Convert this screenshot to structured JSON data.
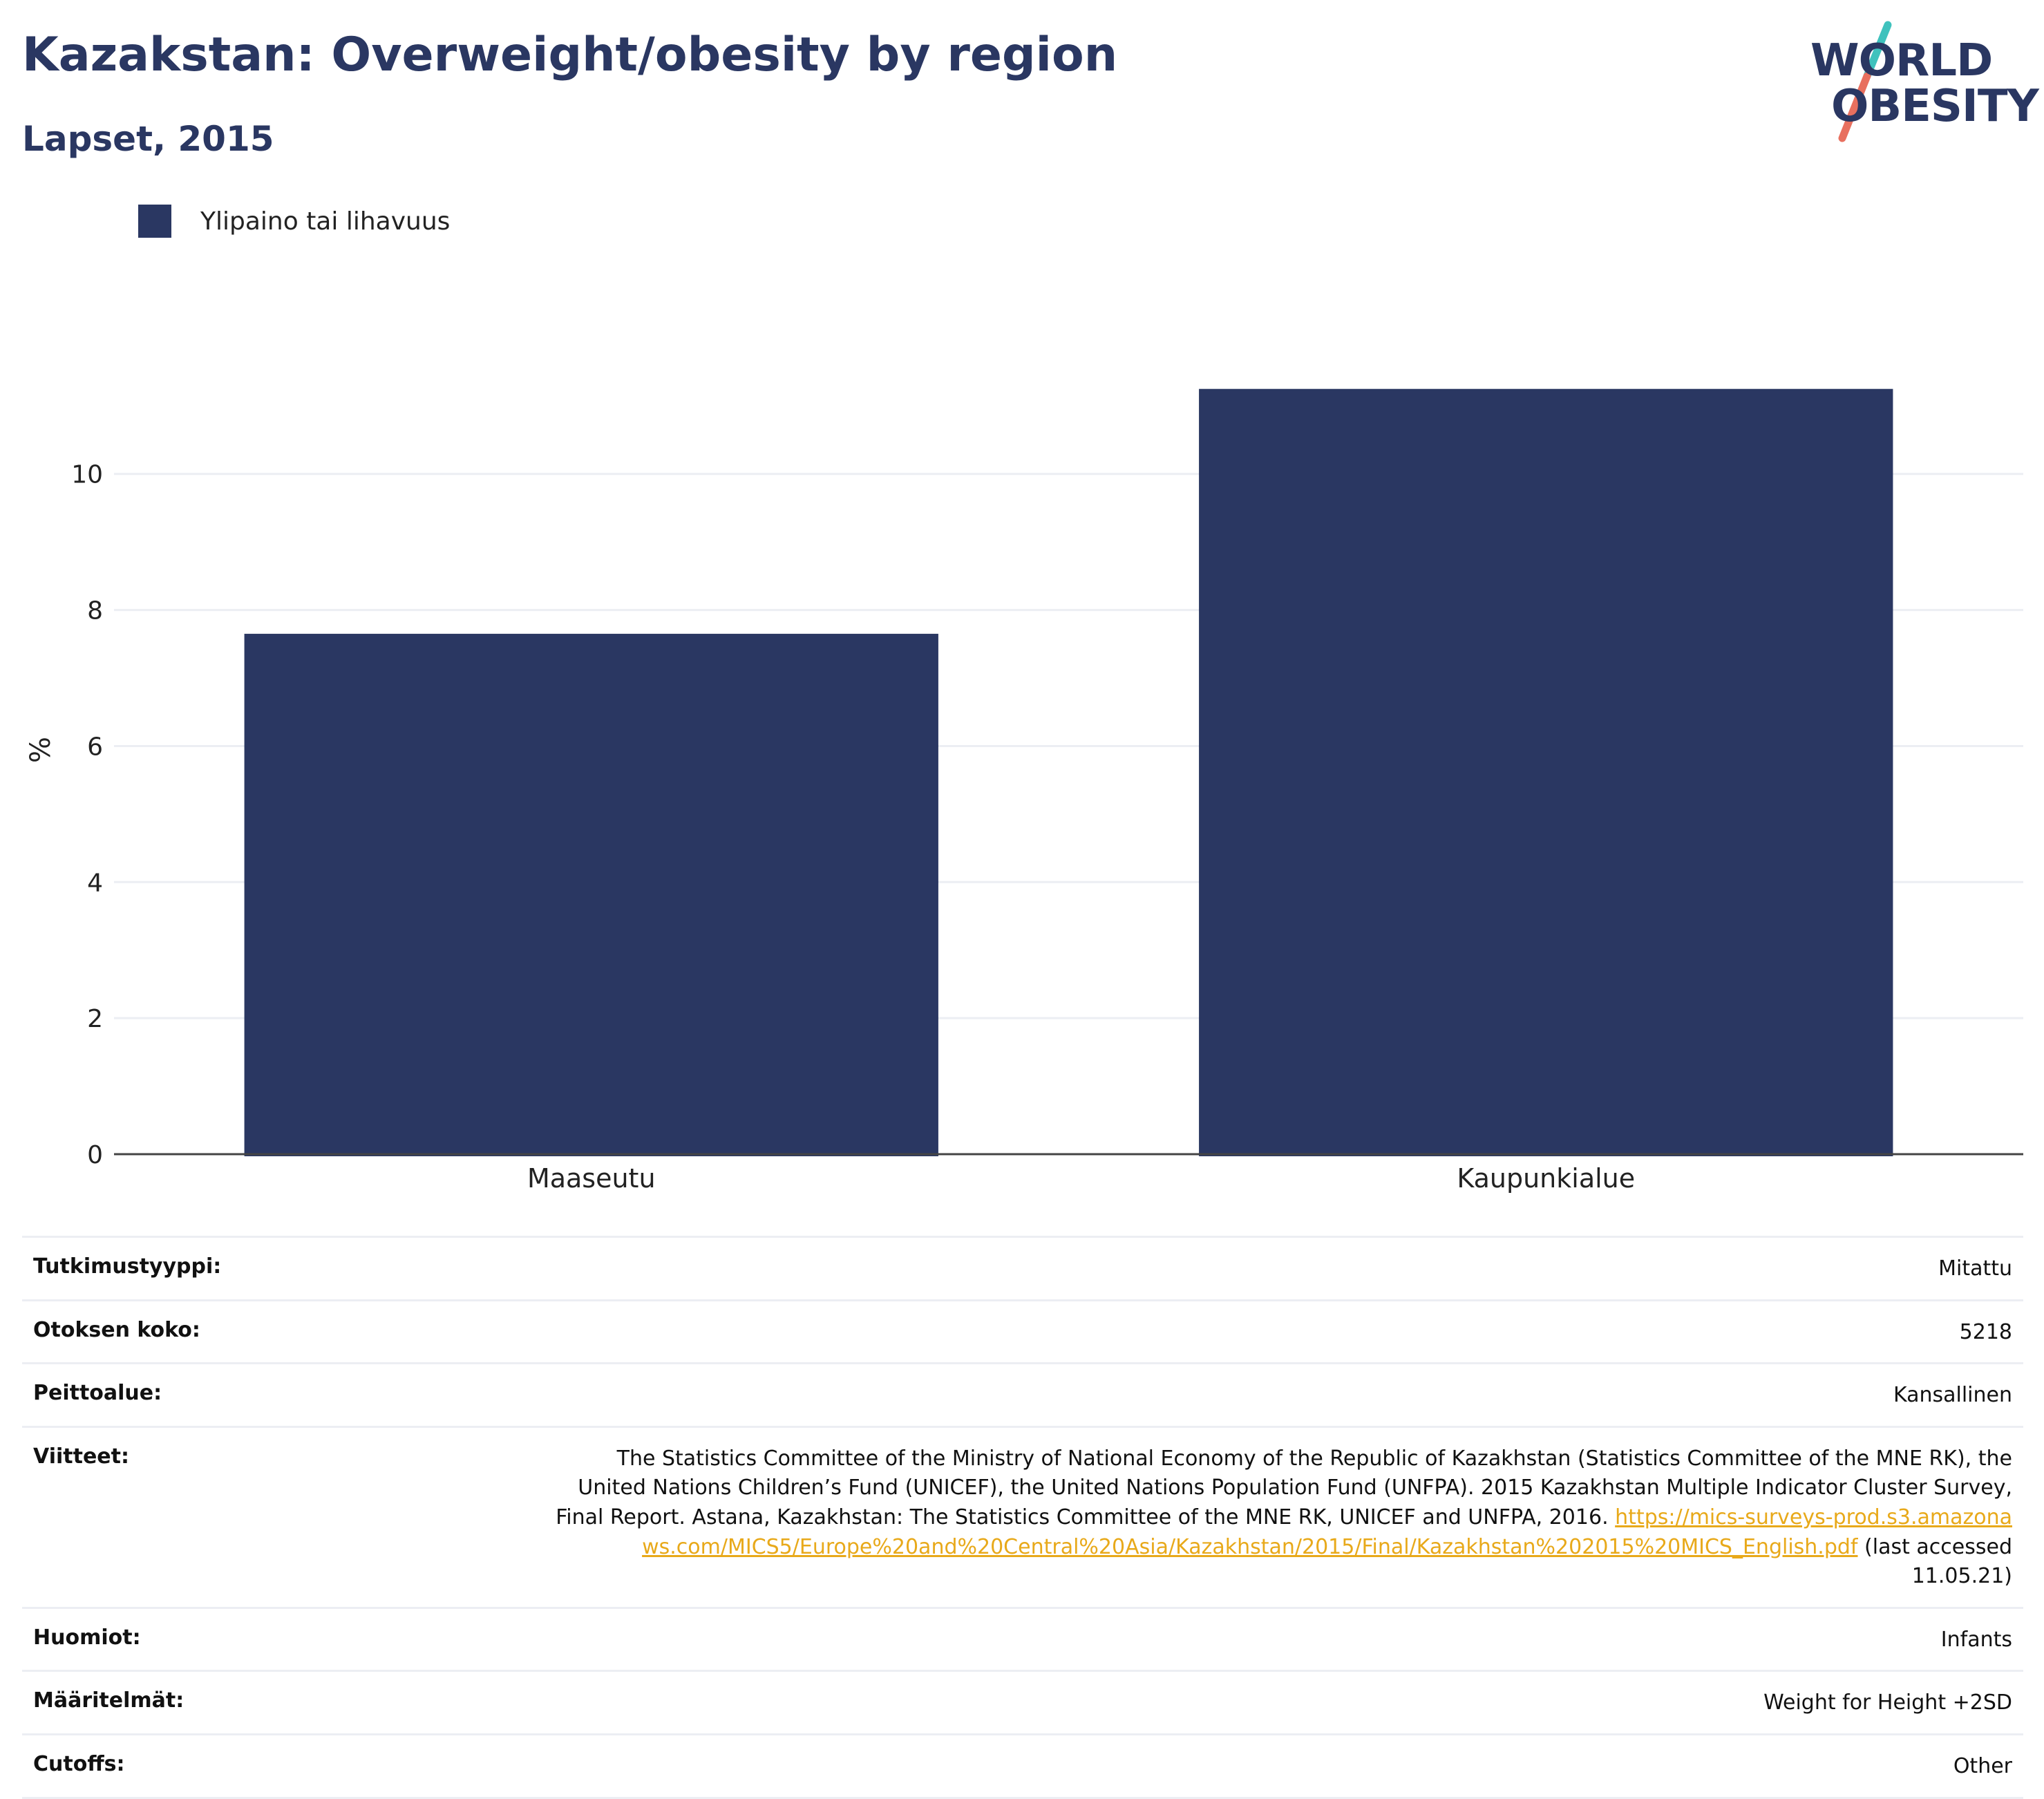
{
  "header": {
    "title": "Kazakstan: Overweight/obesity by region",
    "subtitle": "Lapset, 2015"
  },
  "logo": {
    "line1": "WORLD",
    "line2": "OBESITY",
    "colors": {
      "text": "#2a3762",
      "slash_top": "#3fc2bd",
      "slash_bottom": "#e8705f"
    }
  },
  "chart_data": {
    "type": "bar",
    "categories": [
      "Maaseutu",
      "Kaupunkialue"
    ],
    "series": [
      {
        "name": "Ylipaino tai lihavuus",
        "values": [
          7.65,
          11.25
        ],
        "color": "#2a3762"
      }
    ],
    "ylabel": "%",
    "xlabel": "",
    "ylim": [
      0,
      12.7
    ],
    "yticks": [
      "0",
      "2",
      "4",
      "6",
      "8",
      "10"
    ],
    "grid": true,
    "legend_position": "top-left"
  },
  "meta": {
    "rows": [
      {
        "key": "Tutkimustyyppi:",
        "value": "Mitattu"
      },
      {
        "key": "Otoksen koko:",
        "value": "5218"
      },
      {
        "key": "Peittoalue:",
        "value": "Kansallinen"
      },
      {
        "key": "Viitteet:",
        "value": "The Statistics Committee of the Ministry of National Economy of the Republic of Kazakhstan (Statistics Committee of the MNE RK), the United Nations Children’s Fund (UNICEF), the United Nations Population Fund (UNFPA). 2015 Kazakhstan Multiple Indicator Cluster Survey, Final Report. Astana, Kazakhstan: The Statistics Committee of the MNE RK, UNICEF and UNFPA, 2016.",
        "link": "https://mics-surveys-prod.s3.amazonaws.com/MICS5/Europe%20and%20Central%20Asia/Kazakhstan/2015/Final/Kazakhstan%202015%20MICS_English.pdf",
        "suffix": "(last accessed 11.05.21)"
      },
      {
        "key": "Huomiot:",
        "value": "Infants"
      },
      {
        "key": "Määritelmät:",
        "value": "Weight for Height +2SD"
      },
      {
        "key": "Cutoffs:",
        "value": "Other"
      }
    ]
  }
}
